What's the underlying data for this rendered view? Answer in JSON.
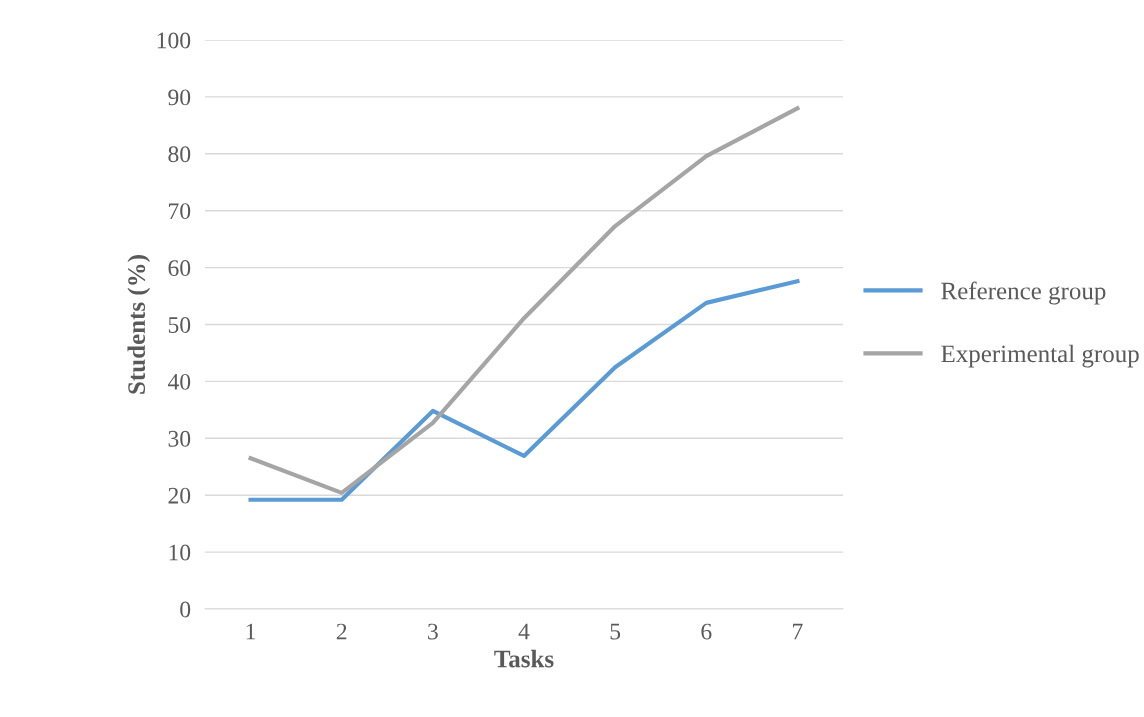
{
  "chart_data": {
    "type": "line",
    "xlabel": "Tasks",
    "ylabel": "Students (%)",
    "categories": [
      "1",
      "2",
      "3",
      "4",
      "5",
      "6",
      "7"
    ],
    "series": [
      {
        "name": "Reference group",
        "color": "#5b9bd5",
        "values": [
          19.2,
          19.2,
          34.8,
          26.9,
          42.5,
          53.8,
          57.6
        ]
      },
      {
        "name": "Experimental group",
        "color": "#a5a5a5",
        "values": [
          26.5,
          20.4,
          32.7,
          51.1,
          67.3,
          79.6,
          88.0
        ]
      }
    ],
    "ylim": [
      0,
      100
    ],
    "yticks": [
      0,
      10,
      20,
      30,
      40,
      50,
      60,
      70,
      80,
      90,
      100
    ],
    "grid": "y",
    "legend": "right",
    "marker": "none",
    "line_style": "solid"
  }
}
